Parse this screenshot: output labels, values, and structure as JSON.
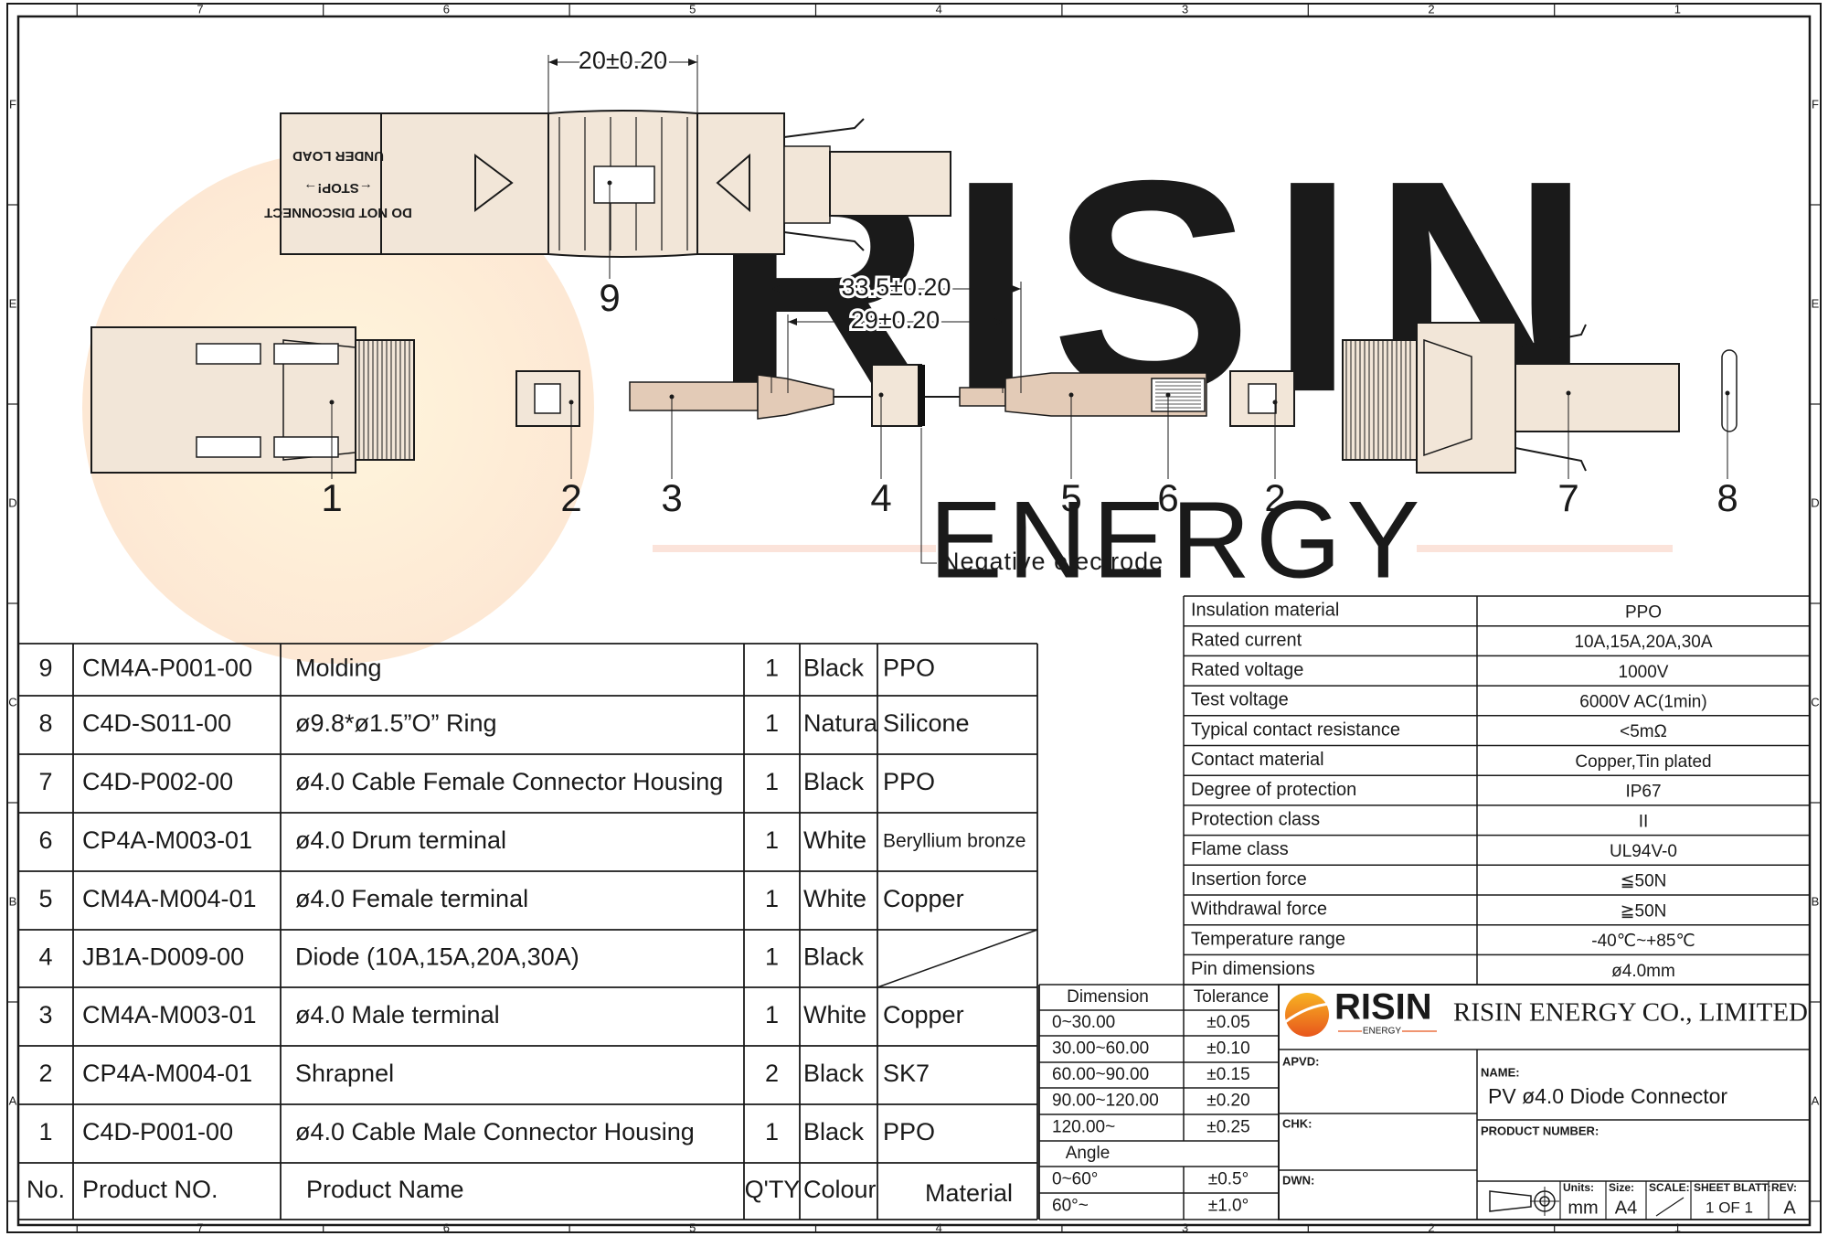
{
  "frame": {
    "columns": [
      "7",
      "6",
      "5",
      "4",
      "3",
      "2",
      "1"
    ],
    "rows": [
      "F",
      "E",
      "D",
      "C",
      "B",
      "A"
    ]
  },
  "drawing": {
    "watermark": [
      "RISIN",
      "ENERGY"
    ],
    "housing_marks": [
      "UNDER LOAD",
      "←STOP!→",
      "DO NOT DISCONNECT"
    ],
    "dimensions": [
      "20±0.20",
      "33.5±0.20",
      "29±0.20"
    ],
    "callouts": [
      "9",
      "1",
      "2",
      "3",
      "4",
      "5",
      "6",
      "2",
      "7",
      "8"
    ],
    "note": "Negative electrode"
  },
  "bom": {
    "rows": [
      [
        "9",
        "CM4A-P001-00",
        "Molding",
        "1",
        "Black",
        "PPO"
      ],
      [
        "8",
        "C4D-S011-00",
        "ø9.8*ø1.5”O” Ring",
        "1",
        "Natura",
        "Silicone"
      ],
      [
        "7",
        "C4D-P002-00",
        "ø4.0 Cable Female Connector Housing",
        "1",
        "Black",
        "PPO"
      ],
      [
        "6",
        "CP4A-M003-01",
        "ø4.0 Drum terminal",
        "1",
        "White",
        "Beryllium bronze"
      ],
      [
        "5",
        "CM4A-M004-01",
        "ø4.0 Female terminal",
        "1",
        "White",
        "Copper"
      ],
      [
        "4",
        "JB1A-D009-00",
        "Diode (10A,15A,20A,30A)",
        "1",
        "Black",
        null
      ],
      [
        "3",
        "CM4A-M003-01",
        "ø4.0 Male terminal",
        "1",
        "White",
        "Copper"
      ],
      [
        "2",
        "CP4A-M004-01",
        "Shrapnel",
        "2",
        "Black",
        "SK7"
      ],
      [
        "1",
        "C4D-P001-00",
        "ø4.0 Cable Male Connector Housing",
        "1",
        "Black",
        "PPO"
      ]
    ],
    "header": [
      "No.",
      "Product NO.",
      "Product Name",
      "Q'TY",
      "Colour",
      "Material"
    ]
  },
  "specs": {
    "rows": [
      [
        "Insulation material",
        "PPO"
      ],
      [
        "Rated current",
        "10A,15A,20A,30A"
      ],
      [
        "Rated voltage",
        "1000V"
      ],
      [
        "Test voltage",
        "6000V AC(1min)"
      ],
      [
        "Typical contact resistance",
        "<5mΩ"
      ],
      [
        "Contact material",
        "Copper,Tin plated"
      ],
      [
        "Degree of protection",
        "IP67"
      ],
      [
        "Protection class",
        "II"
      ],
      [
        "Flame class",
        "UL94V-0"
      ],
      [
        "Insertion force",
        "≦50N"
      ],
      [
        "Withdrawal force",
        "≧50N"
      ],
      [
        "Temperature range",
        "-40℃~+85℃"
      ],
      [
        "Pin dimensions",
        "ø4.0mm"
      ]
    ]
  },
  "tolerances": {
    "header": [
      "Dimension",
      "Tolerance"
    ],
    "rows": [
      [
        "0~30.00",
        "±0.05"
      ],
      [
        "30.00~60.00",
        "±0.10"
      ],
      [
        "60.00~90.00",
        "±0.15"
      ],
      [
        "90.00~120.00",
        "±0.20"
      ],
      [
        "120.00~",
        "±0.25"
      ]
    ],
    "angle_title": "Angle",
    "angle_rows": [
      [
        "0~60°",
        "±0.5°"
      ],
      [
        "60°~",
        "±1.0°"
      ]
    ]
  },
  "title_block": {
    "logo": [
      "RISIN",
      "ENERGY"
    ],
    "company": "RISIN ENERGY CO., LIMITED",
    "apvd": "APVD:",
    "chk": "CHK:",
    "dwn": "DWN:",
    "name_label": "NAME:",
    "name": "PV ø4.0 Diode Connector",
    "product_number_label": "PRODUCT NUMBER:",
    "units_label": "Units:",
    "units": "mm",
    "size_label": "Size:",
    "size": "A4",
    "scale_label": "SCALE:",
    "sheet_label": "SHEET BLATT:",
    "sheet": "1 OF 1",
    "rev_label": "REV:",
    "rev": "A"
  }
}
